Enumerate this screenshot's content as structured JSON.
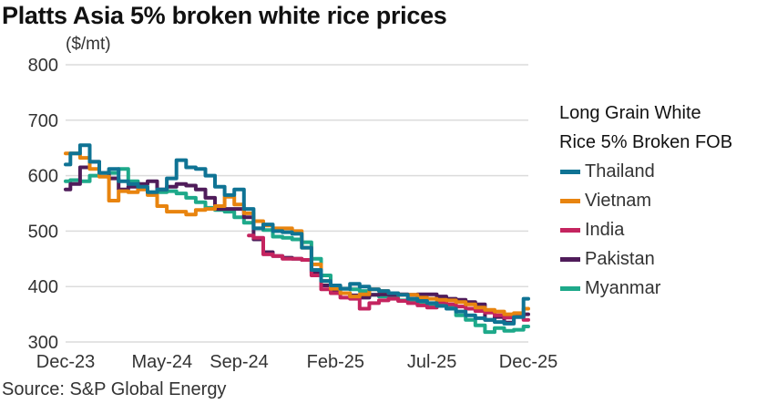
{
  "header": {
    "title": "Platts Asia 5% broken white rice prices",
    "unit": "($/mt)"
  },
  "legend": {
    "title_line1": "Long Grain White",
    "title_line2": "Rice 5% Broken FOB"
  },
  "footer": {
    "source": "Source: S&P Global Energy"
  },
  "chart_data": {
    "type": "line",
    "title": "Platts Asia 5% broken white rice prices",
    "ylabel": "($/mt)",
    "xlabel": "",
    "ylim": [
      300,
      800
    ],
    "yticks": [
      300,
      400,
      500,
      600,
      700,
      800
    ],
    "ytick_labels": [
      "300",
      "400",
      "500",
      "600",
      "700",
      "800"
    ],
    "xlim_months": [
      0,
      24
    ],
    "xticks": [
      0,
      5,
      9,
      14,
      19,
      24
    ],
    "xtick_labels": [
      "Dec-23",
      "May-24",
      "Sep-24",
      "Feb-25",
      "Jul-25",
      "Dec-25"
    ],
    "x_unit": "months since Dec-23 (half-month steps)",
    "grid": "horizontal",
    "legend_position": "right",
    "legend_title": "Long Grain White Rice 5% Broken FOB",
    "series": [
      {
        "name": "Thailand",
        "color": "#0f7394",
        "x": [
          0,
          0.5,
          1,
          1.5,
          2,
          2.5,
          3,
          3.5,
          4,
          4.5,
          5,
          5.5,
          6,
          6.5,
          7,
          7.5,
          8,
          8.5,
          9,
          9.5,
          10,
          10.5,
          11,
          11.5,
          12,
          12.5,
          13,
          13.5,
          14,
          14.5,
          15,
          15.5,
          16,
          16.5,
          17,
          17.5,
          18,
          18.5,
          19,
          19.5,
          20,
          20.5,
          21,
          21.5,
          22,
          22.5,
          23,
          23.5,
          24
        ],
        "values": [
          620,
          640,
          655,
          625,
          605,
          612,
          590,
          585,
          580,
          570,
          575,
          595,
          628,
          615,
          612,
          600,
          580,
          565,
          575,
          540,
          505,
          512,
          500,
          498,
          495,
          470,
          430,
          410,
          402,
          396,
          405,
          400,
          395,
          392,
          388,
          385,
          378,
          374,
          370,
          365,
          360,
          355,
          348,
          343,
          340,
          336,
          333,
          345,
          378
        ]
      },
      {
        "name": "Vietnam",
        "color": "#e8840f",
        "x": [
          0,
          0.5,
          1,
          1.5,
          2,
          2.5,
          3,
          3.5,
          4,
          4.5,
          5,
          5.5,
          6,
          6.5,
          7,
          7.5,
          8,
          8.5,
          9,
          9.5,
          10,
          10.5,
          11,
          11.5,
          12,
          12.5,
          13,
          13.5,
          14,
          14.5,
          15,
          15.5,
          16,
          16.5,
          17,
          17.5,
          18,
          18.5,
          19,
          19.5,
          20,
          20.5,
          21,
          21.5,
          22,
          22.5,
          23,
          23.5,
          24
        ],
        "values": [
          640,
          640,
          632,
          612,
          598,
          555,
          572,
          570,
          575,
          565,
          545,
          535,
          535,
          530,
          538,
          540,
          545,
          562,
          548,
          532,
          518,
          510,
          505,
          505,
          500,
          470,
          440,
          410,
          396,
          388,
          382,
          386,
          395,
          392,
          388,
          385,
          385,
          380,
          378,
          376,
          375,
          372,
          368,
          362,
          358,
          355,
          350,
          352,
          360
        ]
      },
      {
        "name": "India",
        "color": "#c4245f",
        "x": [
          9.5,
          10,
          10.5,
          11,
          11.5,
          12,
          12.5,
          13,
          13.5,
          14,
          14.5,
          15,
          15.5,
          16,
          16.5,
          17,
          17.5,
          18,
          18.5,
          19,
          19.5,
          20,
          20.5,
          21,
          21.5,
          22,
          22.5,
          23,
          23.5,
          24
        ],
        "values": [
          492,
          488,
          458,
          455,
          450,
          450,
          448,
          420,
          395,
          388,
          380,
          378,
          360,
          370,
          375,
          378,
          374,
          370,
          366,
          362,
          372,
          368,
          364,
          360,
          356,
          353,
          348,
          344,
          348,
          340
        ]
      },
      {
        "name": "Pakistan",
        "color": "#4f1c5a",
        "x": [
          0,
          0.5,
          1,
          1.5,
          2,
          2.5,
          3,
          3.5,
          4,
          4.5,
          5,
          5.5,
          6,
          6.5,
          7,
          7.5,
          8,
          8.5,
          9,
          9.5,
          10,
          10.5,
          11,
          11.5,
          12,
          12.5,
          13,
          13.5,
          14,
          14.5,
          15,
          15.5,
          16,
          16.5,
          17,
          17.5,
          18,
          18.5,
          19,
          19.5,
          20,
          20.5,
          21,
          21.5,
          22,
          22.5,
          23,
          23.5,
          24
        ],
        "values": [
          575,
          585,
          615,
          625,
          605,
          595,
          575,
          580,
          585,
          590,
          575,
          580,
          585,
          582,
          575,
          560,
          540,
          540,
          540,
          525,
          485,
          462,
          455,
          452,
          450,
          448,
          425,
          402,
          392,
          388,
          384,
          380,
          385,
          386,
          385,
          386,
          385,
          386,
          386,
          382,
          378,
          376,
          372,
          368,
          340,
          345,
          335,
          345,
          350
        ]
      },
      {
        "name": "Myanmar",
        "color": "#1ea98a",
        "x": [
          0,
          0.5,
          1,
          1.5,
          2,
          2.5,
          3,
          3.5,
          4,
          4.5,
          5,
          5.5,
          6,
          6.5,
          7,
          7.5,
          8,
          8.5,
          9,
          9.5,
          10,
          10.5,
          11,
          11.5,
          12,
          12.5,
          13,
          13.5,
          14,
          14.5,
          15,
          15.5,
          16,
          16.5,
          17,
          17.5,
          18,
          18.5,
          19,
          19.5,
          20,
          20.5,
          21,
          21.5,
          22,
          22.5,
          23,
          23.5,
          24
        ],
        "values": [
          590,
          592,
          590,
          600,
          605,
          605,
          612,
          590,
          578,
          570,
          570,
          572,
          568,
          560,
          552,
          542,
          538,
          535,
          525,
          515,
          505,
          502,
          490,
          488,
          485,
          480,
          450,
          420,
          400,
          396,
          395,
          392,
          385,
          382,
          380,
          375,
          372,
          370,
          368,
          366,
          362,
          348,
          340,
          330,
          318,
          325,
          320,
          322,
          328
        ]
      }
    ]
  }
}
